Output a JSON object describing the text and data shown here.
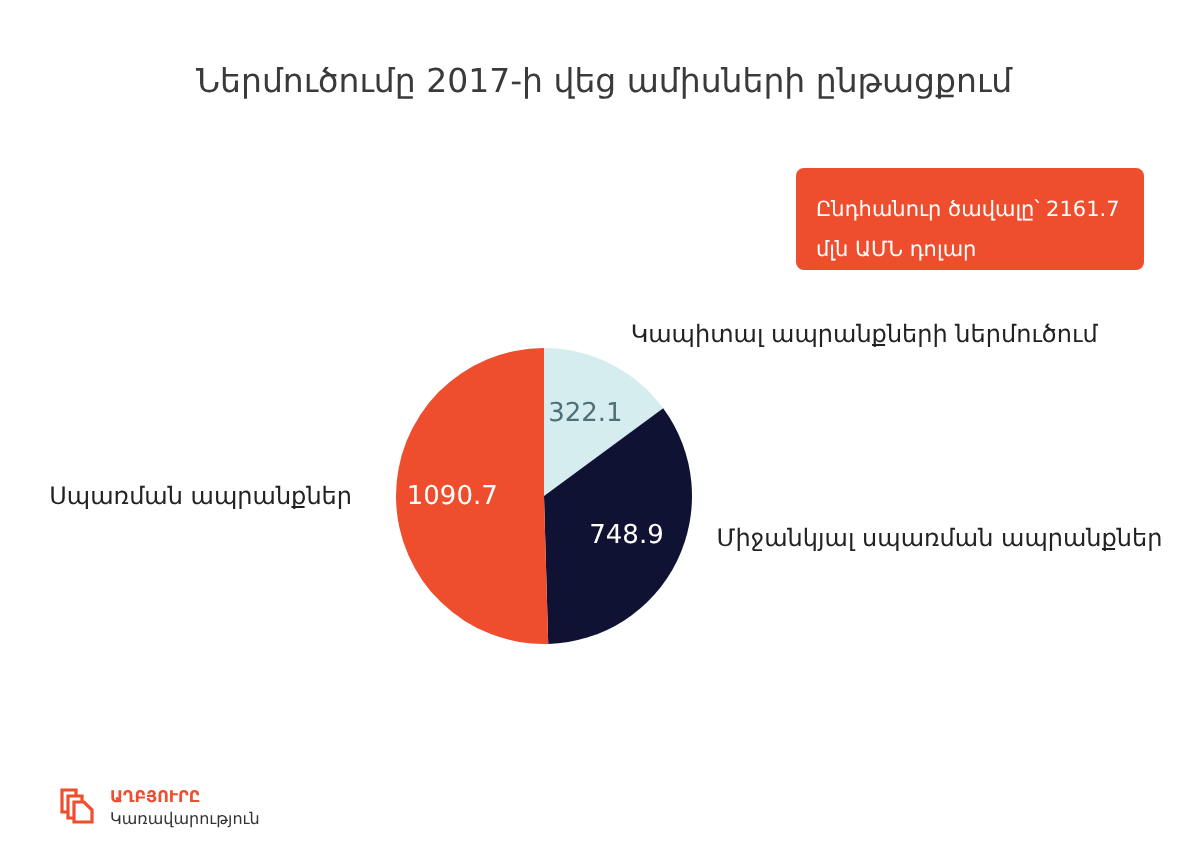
{
  "chart_data": {
    "type": "pie",
    "title": "Ներմուծումը 2017-ի վեց ամիսների ընթացքում",
    "categories": [
      "Կապիտալ ապրանքների ներմուծում",
      "Միջանկյալ սպառման ապրանքներ",
      "Սպառման ապրանքներ"
    ],
    "values": [
      322.1,
      748.9,
      1090.7
    ],
    "colors": [
      "#d6edf0",
      "#0f1233",
      "#ef4e2e"
    ],
    "data_labels": true,
    "legend": false,
    "annotations": [
      "Ընդհանուր ծավալը՝ 2161.7 մլն ԱՄՆ դոլար",
      "ԱՂԲՅՈՒՐԸ",
      "Կառավարություն"
    ]
  }
}
